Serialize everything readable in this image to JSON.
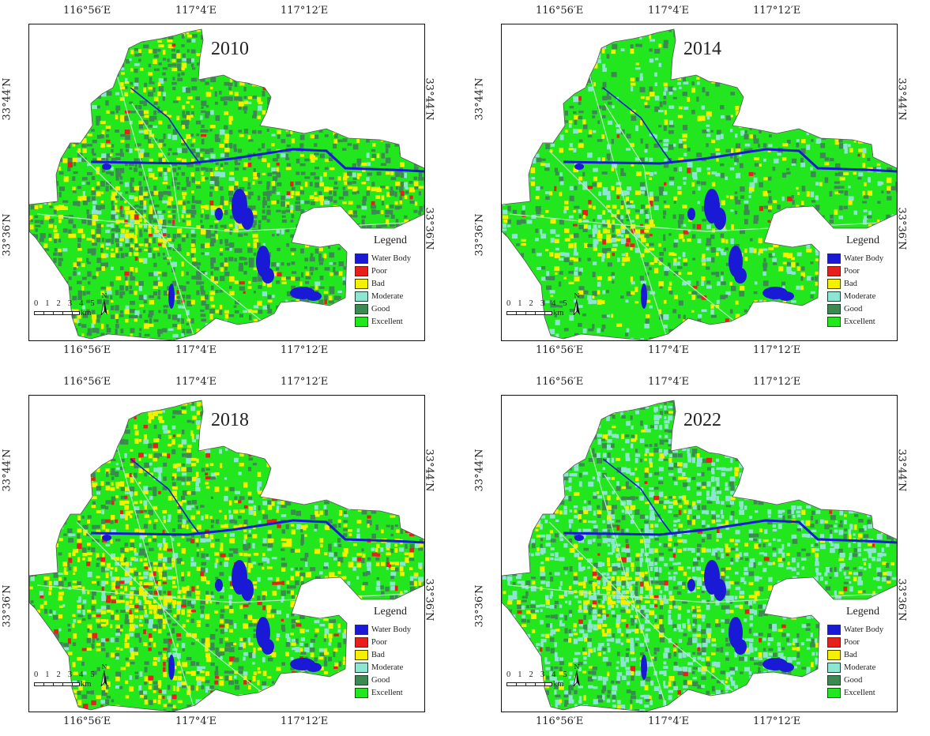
{
  "axes": {
    "top": [
      "116°56′E",
      "117°4′E",
      "117°12′E"
    ],
    "bottom": [
      "116°56′E",
      "117°4′E",
      "117°12′E"
    ],
    "left": [
      "33°44′N",
      "33°36′N"
    ],
    "right": [
      "33°44′N",
      "33°36′N"
    ]
  },
  "panels": [
    {
      "year": "2010"
    },
    {
      "year": "2014"
    },
    {
      "year": "2018"
    },
    {
      "year": "2022"
    }
  ],
  "legend": {
    "title": "Legend",
    "items": [
      {
        "label": "Water Body",
        "color": "#1a1ad6"
      },
      {
        "label": "Poor",
        "color": "#e8201c"
      },
      {
        "label": "Bad",
        "color": "#f5f000"
      },
      {
        "label": "Moderate",
        "color": "#8ee6d2"
      },
      {
        "label": "Good",
        "color": "#3c8a52"
      },
      {
        "label": "Excellent",
        "color": "#22e61e"
      }
    ]
  },
  "scale": {
    "numbers": "0 1 2 3 4 5",
    "unit": "km",
    "north": "N"
  },
  "class_mix": [
    {
      "excellent": 0.55,
      "good": 0.28,
      "moderate": 0.04,
      "bad": 0.12,
      "poor": 0.01
    },
    {
      "excellent": 0.72,
      "good": 0.12,
      "moderate": 0.08,
      "bad": 0.075,
      "poor": 0.005
    },
    {
      "excellent": 0.58,
      "good": 0.14,
      "moderate": 0.07,
      "bad": 0.18,
      "poor": 0.03
    },
    {
      "excellent": 0.52,
      "good": 0.14,
      "moderate": 0.26,
      "bad": 0.07,
      "poor": 0.01
    }
  ]
}
